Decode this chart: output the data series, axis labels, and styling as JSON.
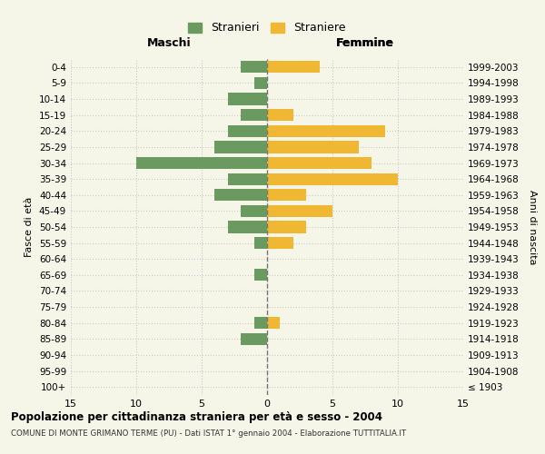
{
  "age_groups": [
    "100+",
    "95-99",
    "90-94",
    "85-89",
    "80-84",
    "75-79",
    "70-74",
    "65-69",
    "60-64",
    "55-59",
    "50-54",
    "45-49",
    "40-44",
    "35-39",
    "30-34",
    "25-29",
    "20-24",
    "15-19",
    "10-14",
    "5-9",
    "0-4"
  ],
  "birth_years": [
    "≤ 1903",
    "1904-1908",
    "1909-1913",
    "1914-1918",
    "1919-1923",
    "1924-1928",
    "1929-1933",
    "1934-1938",
    "1939-1943",
    "1944-1948",
    "1949-1953",
    "1954-1958",
    "1959-1963",
    "1964-1968",
    "1969-1973",
    "1974-1978",
    "1979-1983",
    "1984-1988",
    "1989-1993",
    "1994-1998",
    "1999-2003"
  ],
  "males": [
    0,
    0,
    0,
    2,
    1,
    0,
    0,
    1,
    0,
    1,
    3,
    2,
    4,
    3,
    10,
    4,
    3,
    2,
    3,
    1,
    2
  ],
  "females": [
    0,
    0,
    0,
    0,
    1,
    0,
    0,
    0,
    0,
    2,
    3,
    5,
    3,
    10,
    8,
    7,
    9,
    2,
    0,
    0,
    4
  ],
  "male_color": "#6a9a5f",
  "female_color": "#f0b832",
  "background_color": "#f5f5e8",
  "grid_color": "#cccccc",
  "center_line_color": "#777777",
  "title": "Popolazione per cittadinanza straniera per età e sesso - 2004",
  "subtitle": "COMUNE DI MONTE GRIMANO TERME (PU) - Dati ISTAT 1° gennaio 2004 - Elaborazione TUTTITALIA.IT",
  "xlabel_left": "Maschi",
  "xlabel_right": "Femmine",
  "ylabel_left": "Fasce di età",
  "ylabel_right": "Anni di nascita",
  "legend_male": "Stranieri",
  "legend_female": "Straniere",
  "xlim": 15
}
